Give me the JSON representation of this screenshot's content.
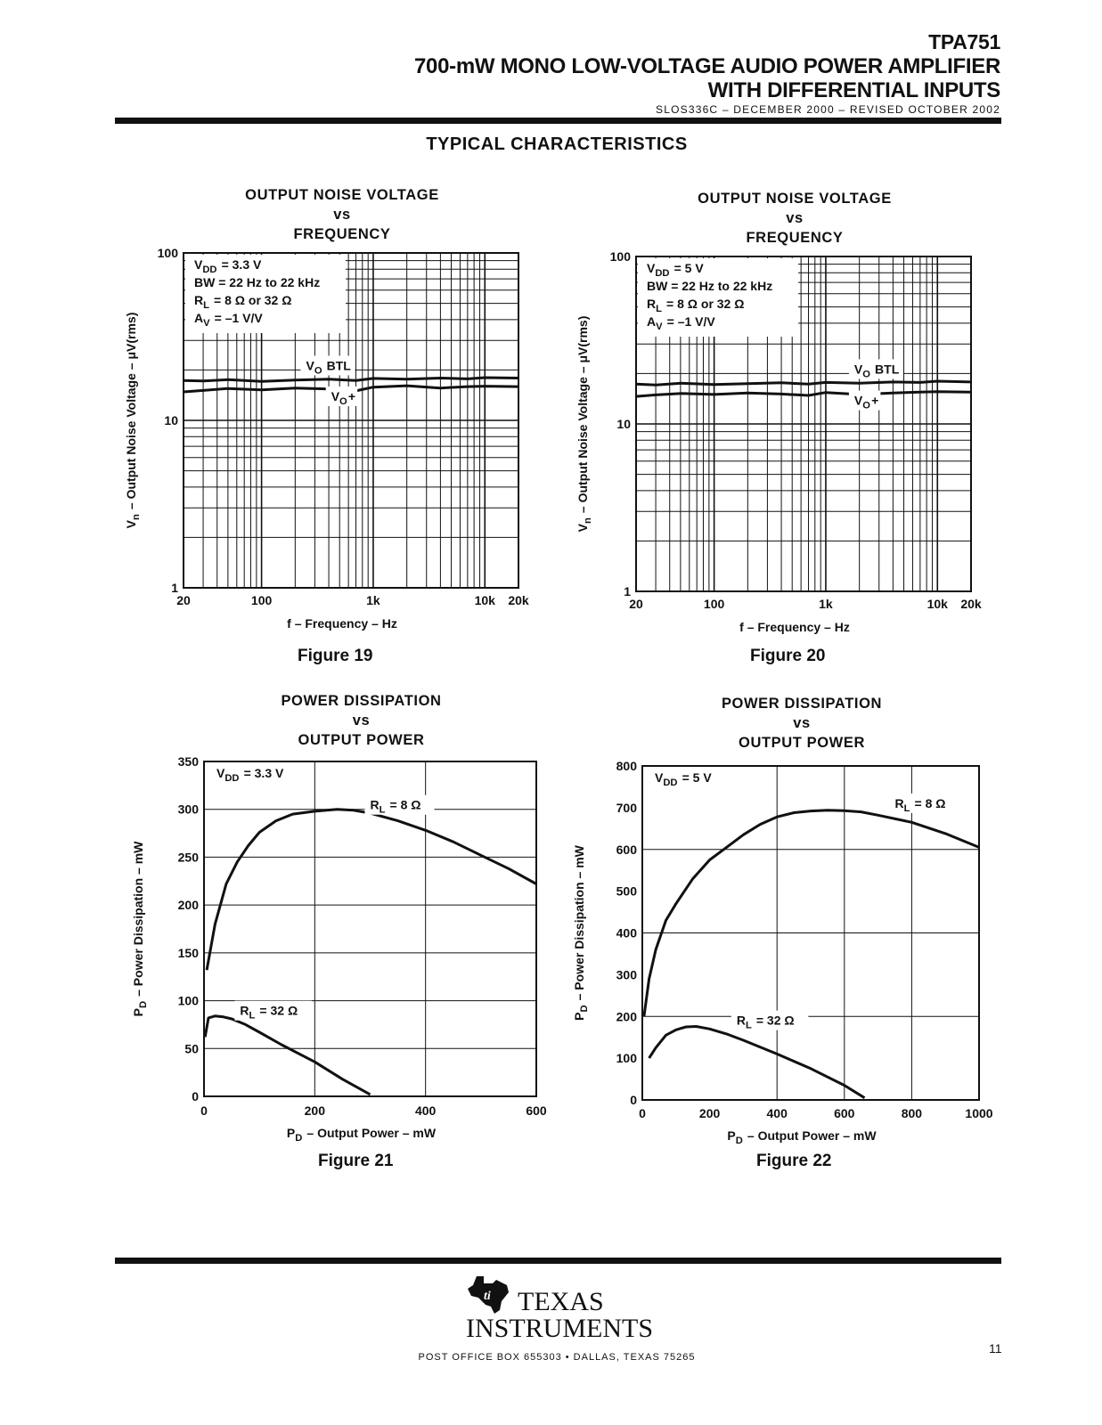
{
  "header": {
    "part_number": "TPA751",
    "title_line1": "700-mW MONO LOW-VOLTAGE AUDIO POWER AMPLIFIER",
    "title_line2": "WITH DIFFERENTIAL INPUTS",
    "doc_code": "SLOS336C – DECEMBER 2000 – REVISED OCTOBER 2002"
  },
  "section_title": "TYPICAL CHARACTERISTICS",
  "chart_data": [
    {
      "id": "fig19",
      "type": "line",
      "figure_label": "Figure 19",
      "title_lines": [
        "OUTPUT NOISE VOLTAGE",
        "vs",
        "FREQUENCY"
      ],
      "xlabel": "f – Frequency – Hz",
      "ylabel": "Vn – Output Noise Voltage – μV(rms)",
      "x_scale": "log",
      "y_scale": "log",
      "xlim": [
        20,
        20000
      ],
      "ylim": [
        1,
        100
      ],
      "x_ticks": [
        {
          "v": 20,
          "label": "20"
        },
        {
          "v": 100,
          "label": "100"
        },
        {
          "v": 1000,
          "label": "1k"
        },
        {
          "v": 10000,
          "label": "10k"
        },
        {
          "v": 20000,
          "label": "20k"
        }
      ],
      "y_ticks": [
        {
          "v": 1,
          "label": "1"
        },
        {
          "v": 10,
          "label": "10"
        },
        {
          "v": 100,
          "label": "100"
        }
      ],
      "grid": true,
      "conditions": [
        "VDD = 3.3 V",
        "BW = 22 Hz to 22 kHz",
        "RL = 8 Ω or 32 Ω",
        "AV = –1 V/V"
      ],
      "series": [
        {
          "name": "VO BTL",
          "x": [
            20,
            30,
            50,
            100,
            200,
            400,
            700,
            1000,
            2000,
            4000,
            7000,
            10000,
            20000
          ],
          "y": [
            17.3,
            17.2,
            17.5,
            17.1,
            17.4,
            17.6,
            17.3,
            17.8,
            17.6,
            17.9,
            17.7,
            18.0,
            17.9
          ]
        },
        {
          "name": "VO+",
          "x": [
            20,
            30,
            50,
            100,
            200,
            400,
            700,
            1000,
            2000,
            4000,
            7000,
            10000,
            20000
          ],
          "y": [
            14.8,
            15.1,
            15.5,
            15.2,
            15.6,
            15.4,
            15.0,
            15.8,
            16.1,
            15.6,
            15.9,
            16.0,
            15.9
          ]
        }
      ],
      "annotations": [
        {
          "text": "VO BTL",
          "x": 250,
          "y": 20
        },
        {
          "text": "VO+",
          "x": 420,
          "y": 13.1
        }
      ]
    },
    {
      "id": "fig20",
      "type": "line",
      "figure_label": "Figure 20",
      "title_lines": [
        "OUTPUT NOISE VOLTAGE",
        "vs",
        "FREQUENCY"
      ],
      "xlabel": "f – Frequency – Hz",
      "ylabel": "Vn – Output Noise Voltage – μV(rms)",
      "x_scale": "log",
      "y_scale": "log",
      "xlim": [
        20,
        20000
      ],
      "ylim": [
        1,
        100
      ],
      "x_ticks": [
        {
          "v": 20,
          "label": "20"
        },
        {
          "v": 100,
          "label": "100"
        },
        {
          "v": 1000,
          "label": "1k"
        },
        {
          "v": 10000,
          "label": "10k"
        },
        {
          "v": 20000,
          "label": "20k"
        }
      ],
      "y_ticks": [
        {
          "v": 1,
          "label": "1"
        },
        {
          "v": 10,
          "label": "10"
        },
        {
          "v": 100,
          "label": "100"
        }
      ],
      "grid": true,
      "conditions": [
        "VDD = 5 V",
        "BW = 22 Hz to 22 kHz",
        "RL = 8 Ω or 32 Ω",
        "AV = –1 V/V"
      ],
      "series": [
        {
          "name": "VO BTL",
          "x": [
            20,
            30,
            50,
            100,
            200,
            400,
            700,
            1000,
            2000,
            4000,
            7000,
            10000,
            20000
          ],
          "y": [
            17.3,
            17.1,
            17.5,
            17.2,
            17.4,
            17.6,
            17.3,
            17.7,
            17.5,
            17.8,
            17.7,
            18.0,
            17.8
          ]
        },
        {
          "name": "VO+",
          "x": [
            20,
            30,
            50,
            100,
            200,
            400,
            700,
            1000,
            2000,
            4000,
            7000,
            10000,
            20000
          ],
          "y": [
            14.6,
            14.9,
            15.2,
            15.0,
            15.3,
            15.1,
            14.8,
            15.4,
            15.0,
            15.3,
            15.5,
            15.6,
            15.5
          ]
        }
      ],
      "annotations": [
        {
          "text": "VO BTL",
          "x": 1800,
          "y": 20
        },
        {
          "text": "VO+",
          "x": 1800,
          "y": 13
        }
      ]
    },
    {
      "id": "fig21",
      "type": "line",
      "figure_label": "Figure 21",
      "title_lines": [
        "POWER DISSIPATION",
        "vs",
        "OUTPUT POWER"
      ],
      "xlabel": "PD – Output Power – mW",
      "ylabel": "PD – Power Dissipation – mW",
      "x_scale": "linear",
      "y_scale": "linear",
      "xlim": [
        0,
        600
      ],
      "ylim": [
        0,
        350
      ],
      "x_ticks": [
        {
          "v": 0,
          "label": "0"
        },
        {
          "v": 200,
          "label": "200"
        },
        {
          "v": 400,
          "label": "400"
        },
        {
          "v": 600,
          "label": "600"
        }
      ],
      "y_ticks": [
        {
          "v": 0,
          "label": "0"
        },
        {
          "v": 50,
          "label": "50"
        },
        {
          "v": 100,
          "label": "100"
        },
        {
          "v": 150,
          "label": "150"
        },
        {
          "v": 200,
          "label": "200"
        },
        {
          "v": 250,
          "label": "250"
        },
        {
          "v": 300,
          "label": "300"
        },
        {
          "v": 350,
          "label": "350"
        }
      ],
      "x_grid": [
        0,
        200,
        400,
        600
      ],
      "y_grid": [
        0,
        50,
        100,
        150,
        200,
        250,
        300,
        350
      ],
      "grid": true,
      "conditions": [
        "VDD = 3.3 V"
      ],
      "series": [
        {
          "name": "RL = 8 Ω",
          "x": [
            5,
            20,
            40,
            60,
            80,
            100,
            130,
            160,
            200,
            240,
            270,
            300,
            350,
            400,
            450,
            500,
            550,
            600
          ],
          "y": [
            132,
            180,
            222,
            245,
            262,
            276,
            288,
            295,
            298,
            300,
            299,
            296,
            288,
            278,
            266,
            252,
            238,
            222
          ]
        },
        {
          "name": "RL = 32 Ω",
          "x": [
            2,
            8,
            20,
            35,
            50,
            75,
            100,
            140,
            200,
            250,
            300
          ],
          "y": [
            62,
            82,
            84,
            83,
            81,
            75,
            67,
            54,
            36,
            18,
            2
          ]
        }
      ],
      "annotations": [
        {
          "text": "RL = 8 Ω",
          "x": 300,
          "y": 300
        },
        {
          "text": "RL = 32 Ω",
          "x": 65,
          "y": 85
        }
      ]
    },
    {
      "id": "fig22",
      "type": "line",
      "figure_label": "Figure 22",
      "title_lines": [
        "POWER DISSIPATION",
        "vs",
        "OUTPUT POWER"
      ],
      "xlabel": "PD – Output Power – mW",
      "ylabel": "PD – Power Dissipation – mW",
      "x_scale": "linear",
      "y_scale": "linear",
      "xlim": [
        0,
        1000
      ],
      "ylim": [
        0,
        800
      ],
      "x_ticks": [
        {
          "v": 0,
          "label": "0"
        },
        {
          "v": 200,
          "label": "200"
        },
        {
          "v": 400,
          "label": "400"
        },
        {
          "v": 600,
          "label": "600"
        },
        {
          "v": 800,
          "label": "800"
        },
        {
          "v": 1000,
          "label": "1000"
        }
      ],
      "y_ticks": [
        {
          "v": 0,
          "label": "0"
        },
        {
          "v": 100,
          "label": "100"
        },
        {
          "v": 200,
          "label": "200"
        },
        {
          "v": 300,
          "label": "300"
        },
        {
          "v": 400,
          "label": "400"
        },
        {
          "v": 500,
          "label": "500"
        },
        {
          "v": 600,
          "label": "600"
        },
        {
          "v": 700,
          "label": "700"
        },
        {
          "v": 800,
          "label": "800"
        }
      ],
      "x_grid": [
        0,
        400,
        600,
        800,
        1000
      ],
      "y_grid": [
        0,
        200,
        400,
        600,
        800
      ],
      "grid": true,
      "conditions": [
        "VDD = 5 V"
      ],
      "series": [
        {
          "name": "RL = 8 Ω",
          "x": [
            5,
            20,
            40,
            70,
            100,
            150,
            200,
            250,
            300,
            350,
            400,
            450,
            500,
            550,
            600,
            650,
            700,
            800,
            900,
            1000
          ],
          "y": [
            200,
            290,
            360,
            430,
            470,
            530,
            575,
            605,
            635,
            660,
            678,
            688,
            692,
            694,
            693,
            690,
            682,
            665,
            638,
            605
          ]
        },
        {
          "name": "RL = 32 Ω",
          "x": [
            20,
            40,
            70,
            100,
            130,
            160,
            200,
            250,
            300,
            400,
            500,
            600,
            660
          ],
          "y": [
            100,
            125,
            155,
            168,
            175,
            176,
            170,
            158,
            143,
            110,
            75,
            35,
            5
          ]
        }
      ],
      "annotations": [
        {
          "text": "RL = 8 Ω",
          "x": 750,
          "y": 700
        },
        {
          "text": "RL = 32 Ω",
          "x": 280,
          "y": 180
        }
      ]
    }
  ],
  "footer": {
    "logo_line1": "TEXAS",
    "logo_line2": "INSTRUMENTS",
    "address": "POST OFFICE BOX 655303 • DALLAS, TEXAS 75265",
    "page_number": "11"
  }
}
